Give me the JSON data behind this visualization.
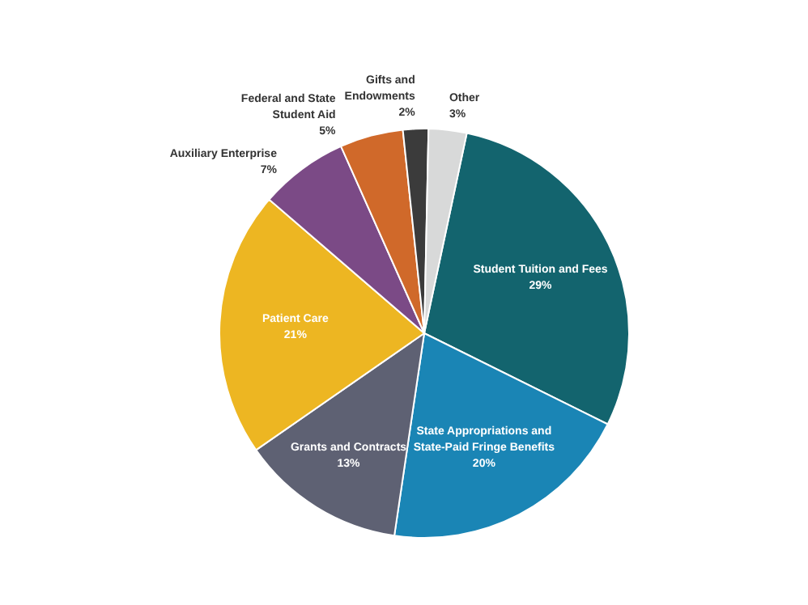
{
  "chart_data": {
    "type": "pie",
    "categories": [
      "Student Tuition and Fees",
      "State Appropriations and State-Paid Fringe Benefits",
      "Grants and Contracts",
      "Patient Care",
      "Auxiliary Enterprise",
      "Federal and State Student Aid",
      "Gifts and Endowments",
      "Other"
    ],
    "values": [
      29,
      20,
      13,
      21,
      7,
      5,
      2,
      3
    ],
    "value_labels": [
      "29%",
      "20%",
      "13%",
      "21%",
      "7%",
      "5%",
      "2%",
      "3%"
    ],
    "colors": [
      "#13646e",
      "#1a85b5",
      "#5e6173",
      "#edb622",
      "#7b4a86",
      "#d0692a",
      "#3b3b3b",
      "#d8d9d9"
    ],
    "legend": false
  }
}
